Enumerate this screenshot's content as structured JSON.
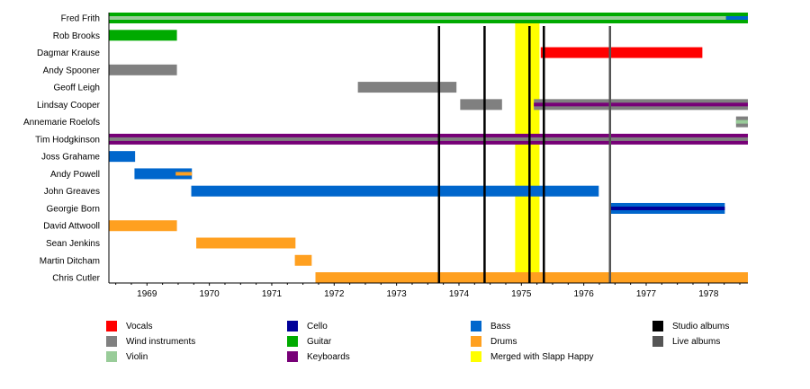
{
  "chart_data": {
    "type": "timeline",
    "xlim": [
      1968.39,
      1978.63
    ],
    "x_ticks": [
      "1969",
      "1970",
      "1971",
      "1972",
      "1973",
      "1974",
      "1975",
      "1976",
      "1977",
      "1978"
    ],
    "colors": {
      "Vocals": "#ff0000",
      "Wind instruments": "#808080",
      "Violin": "#99cc99",
      "Cello": "#000099",
      "Guitar": "#00aa00",
      "Keyboards": "#770077",
      "Bass": "#0066cc",
      "Drums": "#ffa020",
      "Merged with Slapp Happy": "#ffff00",
      "Studio albums": "#000000",
      "Live albums": "#555555"
    },
    "members": [
      {
        "name": "Fred Frith",
        "bars": [
          {
            "role": "Guitar",
            "from": 1968.39,
            "to": 1978.63
          },
          {
            "role": "Violin",
            "from": 1968.39,
            "to": 1978.28,
            "inner": true
          },
          {
            "role": "Bass",
            "from": 1978.28,
            "to": 1978.63,
            "inner": true
          }
        ]
      },
      {
        "name": "Rob Brooks",
        "bars": [
          {
            "role": "Guitar",
            "from": 1968.39,
            "to": 1969.48
          }
        ]
      },
      {
        "name": "Dagmar Krause",
        "bars": [
          {
            "role": "Vocals",
            "from": 1975.31,
            "to": 1977.9
          }
        ]
      },
      {
        "name": "Andy Spooner",
        "bars": [
          {
            "role": "Wind instruments",
            "from": 1968.39,
            "to": 1969.48
          }
        ]
      },
      {
        "name": "Geoff Leigh",
        "bars": [
          {
            "role": "Wind instruments",
            "from": 1972.38,
            "to": 1973.96
          }
        ]
      },
      {
        "name": "Lindsay Cooper",
        "bars": [
          {
            "role": "Wind instruments",
            "from": 1974.02,
            "to": 1974.69
          },
          {
            "role": "Wind instruments",
            "from": 1975.2,
            "to": 1978.63
          },
          {
            "role": "Keyboards",
            "from": 1975.2,
            "to": 1978.63,
            "inner": true
          }
        ]
      },
      {
        "name": "Annemarie Roelofs",
        "bars": [
          {
            "role": "Wind instruments",
            "from": 1978.44,
            "to": 1978.63
          },
          {
            "role": "Violin",
            "from": 1978.44,
            "to": 1978.63,
            "inner": true
          }
        ]
      },
      {
        "name": "Tim Hodgkinson",
        "bars": [
          {
            "role": "Keyboards",
            "from": 1968.39,
            "to": 1978.63
          },
          {
            "role": "Wind instruments",
            "from": 1968.39,
            "to": 1978.63,
            "inner": true
          }
        ]
      },
      {
        "name": "Joss Grahame",
        "bars": [
          {
            "role": "Bass",
            "from": 1968.39,
            "to": 1968.81
          }
        ]
      },
      {
        "name": "Andy Powell",
        "bars": [
          {
            "role": "Bass",
            "from": 1968.8,
            "to": 1969.72
          },
          {
            "role": "Drums",
            "from": 1969.46,
            "to": 1969.72,
            "inner": true
          }
        ]
      },
      {
        "name": "John Greaves",
        "bars": [
          {
            "role": "Bass",
            "from": 1969.71,
            "to": 1976.24
          }
        ]
      },
      {
        "name": "Georgie Born",
        "bars": [
          {
            "role": "Bass",
            "from": 1976.43,
            "to": 1978.26
          },
          {
            "role": "Cello",
            "from": 1976.43,
            "to": 1978.26,
            "inner": true
          }
        ]
      },
      {
        "name": "David Attwooll",
        "bars": [
          {
            "role": "Drums",
            "from": 1968.39,
            "to": 1969.48
          }
        ]
      },
      {
        "name": "Sean Jenkins",
        "bars": [
          {
            "role": "Drums",
            "from": 1969.79,
            "to": 1971.38
          }
        ]
      },
      {
        "name": "Martin Ditcham",
        "bars": [
          {
            "role": "Drums",
            "from": 1971.37,
            "to": 1971.64
          }
        ]
      },
      {
        "name": "Chris Cutler",
        "bars": [
          {
            "role": "Drums",
            "from": 1971.7,
            "to": 1978.63
          }
        ]
      }
    ],
    "merged_period": {
      "from": 1974.9,
      "to": 1975.29
    },
    "studio_albums": [
      1973.68,
      1974.41,
      1975.13,
      1975.36
    ],
    "live_albums": [
      1976.42
    ],
    "legend": {
      "placement": "bottom",
      "entries": [
        {
          "label": "Vocals",
          "color": "#ff0000"
        },
        {
          "label": "Wind instruments",
          "color": "#808080"
        },
        {
          "label": "Violin",
          "color": "#99cc99"
        },
        {
          "label": "Cello",
          "color": "#000099"
        },
        {
          "label": "Guitar",
          "color": "#00aa00"
        },
        {
          "label": "Keyboards",
          "color": "#770077"
        },
        {
          "label": "Bass",
          "color": "#0066cc"
        },
        {
          "label": "Drums",
          "color": "#ffa020"
        },
        {
          "label": "Merged with Slapp Happy",
          "color": "#ffff00"
        },
        {
          "label": "Studio albums",
          "color": "#000000"
        },
        {
          "label": "Live albums",
          "color": "#555555"
        }
      ]
    }
  }
}
